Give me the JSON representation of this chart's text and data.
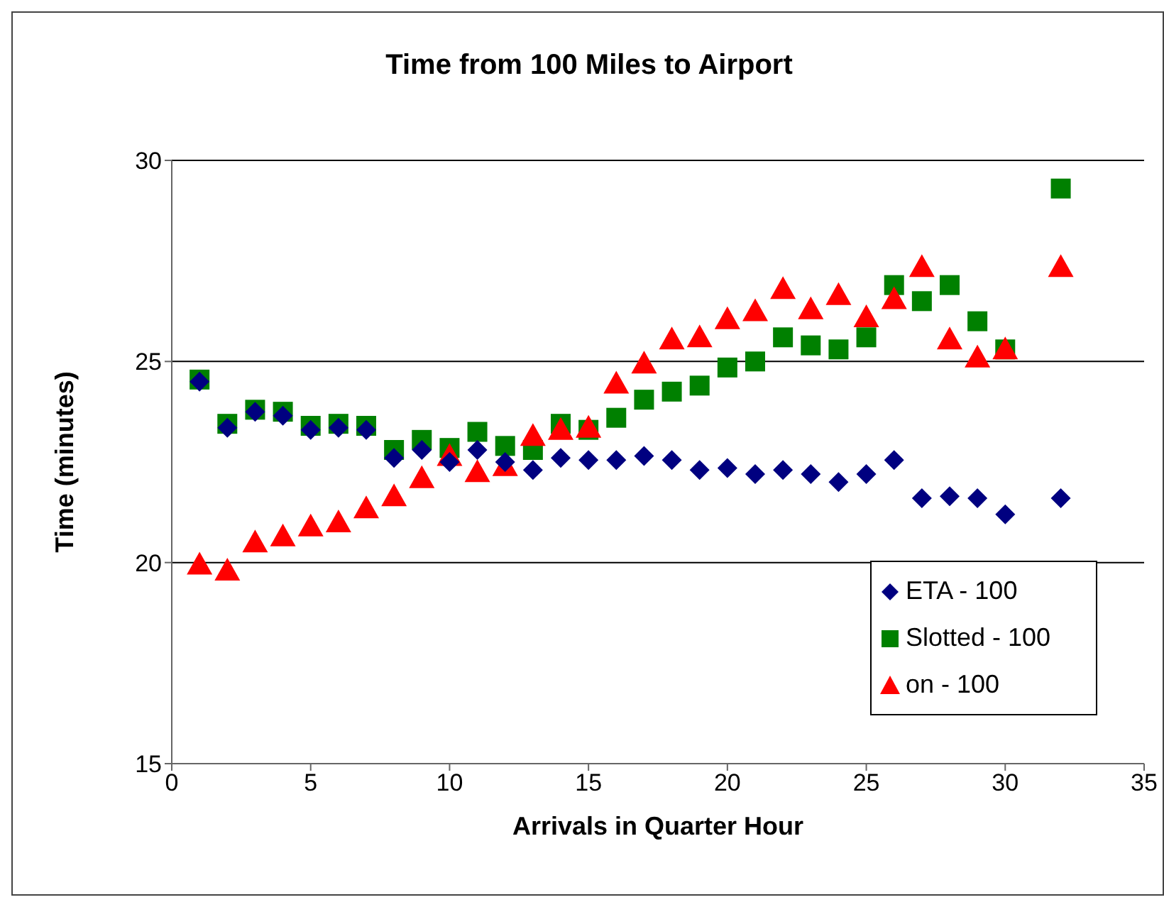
{
  "chart_data": {
    "type": "scatter",
    "title": "Time from 100 Miles to Airport",
    "xlabel": "Arrivals in Quarter Hour",
    "ylabel": "Time (minutes)",
    "x": [
      1,
      2,
      3,
      4,
      5,
      6,
      7,
      8,
      9,
      10,
      11,
      12,
      13,
      14,
      15,
      16,
      17,
      18,
      19,
      20,
      21,
      22,
      23,
      24,
      25,
      26,
      27,
      28,
      29,
      30,
      32
    ],
    "series": [
      {
        "name": "ETA - 100",
        "color": "#000080",
        "marker": "diamond",
        "values": [
          24.5,
          23.35,
          23.75,
          23.65,
          23.3,
          23.35,
          23.3,
          22.6,
          22.8,
          22.5,
          22.8,
          22.5,
          22.3,
          22.6,
          22.55,
          22.55,
          22.65,
          22.55,
          22.3,
          22.35,
          22.2,
          22.3,
          22.2,
          22.0,
          22.2,
          22.55,
          21.6,
          21.65,
          21.6,
          21.2,
          21.6
        ]
      },
      {
        "name": "Slotted - 100",
        "color": "#008000",
        "marker": "square",
        "values": [
          24.55,
          23.45,
          23.8,
          23.75,
          23.4,
          23.45,
          23.4,
          22.8,
          23.05,
          22.85,
          23.25,
          22.9,
          22.8,
          23.45,
          23.3,
          23.6,
          24.05,
          24.25,
          24.4,
          24.85,
          25.0,
          25.6,
          25.4,
          25.3,
          25.6,
          26.9,
          26.5,
          26.9,
          26.0,
          25.3,
          29.3
        ]
      },
      {
        "name": "on - 100",
        "color": "#ff0000",
        "marker": "triangle",
        "values": [
          19.95,
          19.8,
          20.5,
          20.65,
          20.9,
          21.0,
          21.35,
          21.65,
          22.1,
          22.65,
          22.25,
          22.4,
          23.15,
          23.3,
          23.35,
          24.45,
          24.95,
          25.55,
          25.6,
          26.05,
          26.25,
          26.8,
          26.3,
          26.65,
          26.1,
          26.55,
          27.35,
          25.55,
          25.1,
          25.3,
          27.35
        ]
      }
    ],
    "xlim": [
      0,
      35
    ],
    "xticks": [
      0,
      5,
      10,
      15,
      20,
      25,
      30,
      35
    ],
    "ylim": [
      15,
      30
    ],
    "yticks": [
      15,
      20,
      25,
      30
    ],
    "grid": "y",
    "legend": "bottom right"
  }
}
